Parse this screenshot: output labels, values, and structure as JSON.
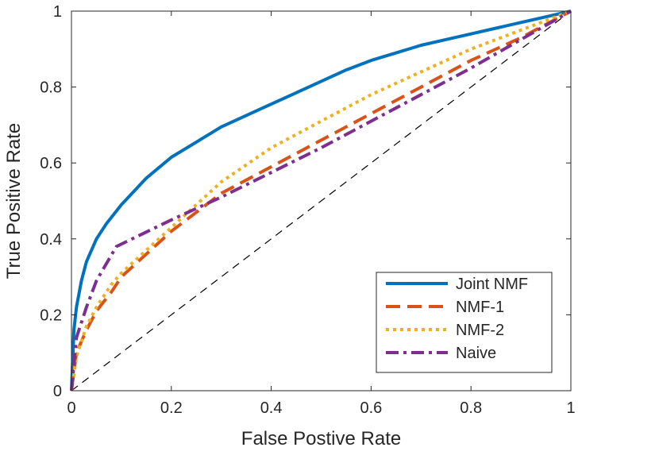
{
  "chart_data": {
    "type": "line",
    "title": "",
    "xlabel": "False Postive Rate",
    "ylabel": "True Positive Rate",
    "xlim": [
      0,
      1
    ],
    "ylim": [
      0,
      1
    ],
    "xticks": [
      0,
      0.2,
      0.4,
      0.6,
      0.8,
      1
    ],
    "yticks": [
      0,
      0.2,
      0.4,
      0.6,
      0.8,
      1
    ],
    "xtick_labels": [
      "0",
      "0.2",
      "0.4",
      "0.6",
      "0.8",
      "1"
    ],
    "ytick_labels": [
      "0",
      "0.2",
      "0.4",
      "0.6",
      "0.8",
      "1"
    ],
    "grid": false,
    "legend_position": "bottom-right",
    "reference_line": {
      "x": [
        0,
        1
      ],
      "y": [
        0,
        1
      ],
      "color": "#000000",
      "style": "dashed"
    },
    "series": [
      {
        "name": "Joint NMF",
        "color": "#0072BD",
        "style": "solid",
        "x": [
          0,
          0.005,
          0.01,
          0.02,
          0.03,
          0.05,
          0.07,
          0.1,
          0.15,
          0.2,
          0.25,
          0.3,
          0.35,
          0.4,
          0.45,
          0.5,
          0.55,
          0.6,
          0.65,
          0.7,
          0.75,
          0.8,
          0.85,
          0.9,
          0.95,
          1
        ],
        "y": [
          0,
          0.16,
          0.22,
          0.29,
          0.34,
          0.4,
          0.44,
          0.49,
          0.56,
          0.615,
          0.655,
          0.695,
          0.725,
          0.755,
          0.785,
          0.815,
          0.845,
          0.87,
          0.89,
          0.91,
          0.925,
          0.94,
          0.955,
          0.97,
          0.985,
          1
        ]
      },
      {
        "name": "NMF-1",
        "color": "#D95319",
        "style": "dashed",
        "x": [
          0,
          0.01,
          0.03,
          0.05,
          0.08,
          0.1,
          0.15,
          0.2,
          0.25,
          0.3,
          0.4,
          0.5,
          0.6,
          0.7,
          0.8,
          0.9,
          1
        ],
        "y": [
          0,
          0.1,
          0.16,
          0.21,
          0.26,
          0.3,
          0.36,
          0.42,
          0.47,
          0.52,
          0.59,
          0.66,
          0.73,
          0.8,
          0.87,
          0.93,
          1
        ]
      },
      {
        "name": "NMF-2",
        "color": "#EDB120",
        "style": "dotted",
        "x": [
          0,
          0.01,
          0.03,
          0.05,
          0.08,
          0.1,
          0.15,
          0.2,
          0.25,
          0.3,
          0.4,
          0.5,
          0.6,
          0.7,
          0.8,
          0.9,
          1
        ],
        "y": [
          0,
          0.09,
          0.17,
          0.22,
          0.28,
          0.31,
          0.37,
          0.43,
          0.49,
          0.55,
          0.64,
          0.71,
          0.78,
          0.84,
          0.9,
          0.95,
          1
        ]
      },
      {
        "name": "Naive",
        "color": "#7E2F8E",
        "style": "dash-dot",
        "x": [
          0,
          0.01,
          0.03,
          0.05,
          0.09,
          0.2,
          0.3,
          0.4,
          0.5,
          0.6,
          0.7,
          0.8,
          0.9,
          1
        ],
        "y": [
          0,
          0.14,
          0.22,
          0.29,
          0.38,
          0.45,
          0.51,
          0.575,
          0.64,
          0.71,
          0.78,
          0.85,
          0.925,
          1
        ]
      }
    ]
  }
}
